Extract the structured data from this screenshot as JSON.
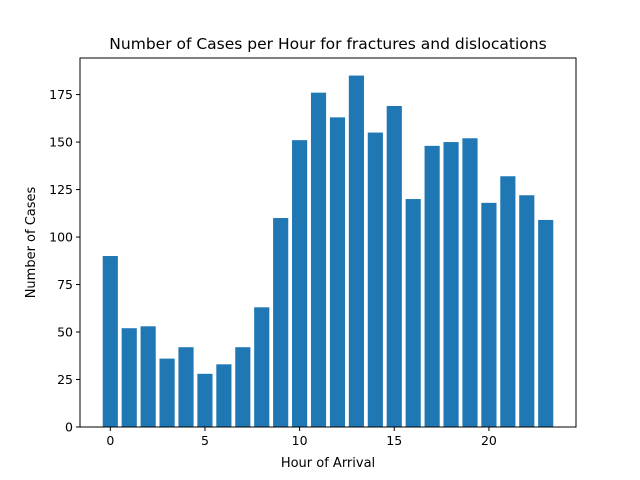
{
  "chart_data": {
    "type": "bar",
    "title": "Number of Cases per Hour for fractures and dislocations",
    "xlabel": "Hour of Arrival",
    "ylabel": "Number of Cases",
    "categories": [
      0,
      1,
      2,
      3,
      4,
      5,
      6,
      7,
      8,
      9,
      10,
      11,
      12,
      13,
      14,
      15,
      16,
      17,
      18,
      19,
      20,
      21,
      22,
      23
    ],
    "values": [
      90,
      52,
      53,
      36,
      42,
      28,
      33,
      42,
      63,
      110,
      151,
      176,
      163,
      185,
      155,
      169,
      120,
      148,
      150,
      152,
      118,
      132,
      122,
      109
    ],
    "xlim": [
      -1.6,
      24.6
    ],
    "ylim": [
      0,
      194.25
    ],
    "xticks": [
      0,
      5,
      10,
      15,
      20
    ],
    "xtick_labels": [
      "0",
      "5",
      "10",
      "15",
      "20"
    ],
    "yticks": [
      0,
      25,
      50,
      75,
      100,
      125,
      150,
      175
    ],
    "ytick_labels": [
      "0",
      "25",
      "50",
      "75",
      "100",
      "125",
      "150",
      "175"
    ],
    "bar_width": 0.8,
    "bar_color": "#1f77b4",
    "grid": false,
    "legend": "none"
  }
}
